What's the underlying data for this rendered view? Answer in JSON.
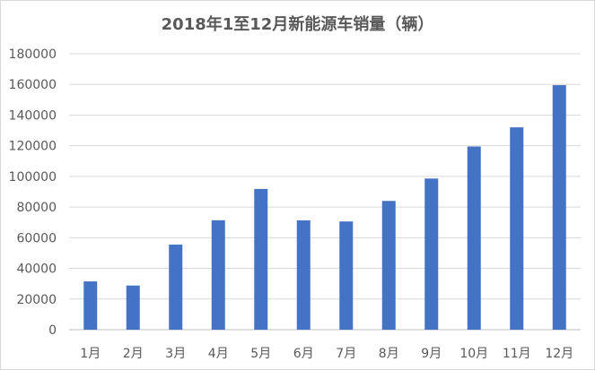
{
  "chart_data": {
    "type": "bar",
    "title": "2018年1至12月新能源车销量（辆）",
    "xlabel": "",
    "ylabel": "",
    "categories": [
      "1月",
      "2月",
      "3月",
      "4月",
      "5月",
      "6月",
      "7月",
      "8月",
      "9月",
      "10月",
      "11月",
      "12月"
    ],
    "values": [
      31500,
      28800,
      55500,
      71400,
      91800,
      71300,
      70600,
      84000,
      98600,
      119500,
      132000,
      159500
    ],
    "ylim": [
      0,
      180000
    ],
    "yticks": [
      "0",
      "20000",
      "40000",
      "60000",
      "80000",
      "100000",
      "120000",
      "140000",
      "160000",
      "180000"
    ],
    "grid": true,
    "legend": "none",
    "colors": {
      "bar": "#4472c4",
      "grid": "#d9d9d9",
      "axis": "#bfbfbf"
    }
  }
}
